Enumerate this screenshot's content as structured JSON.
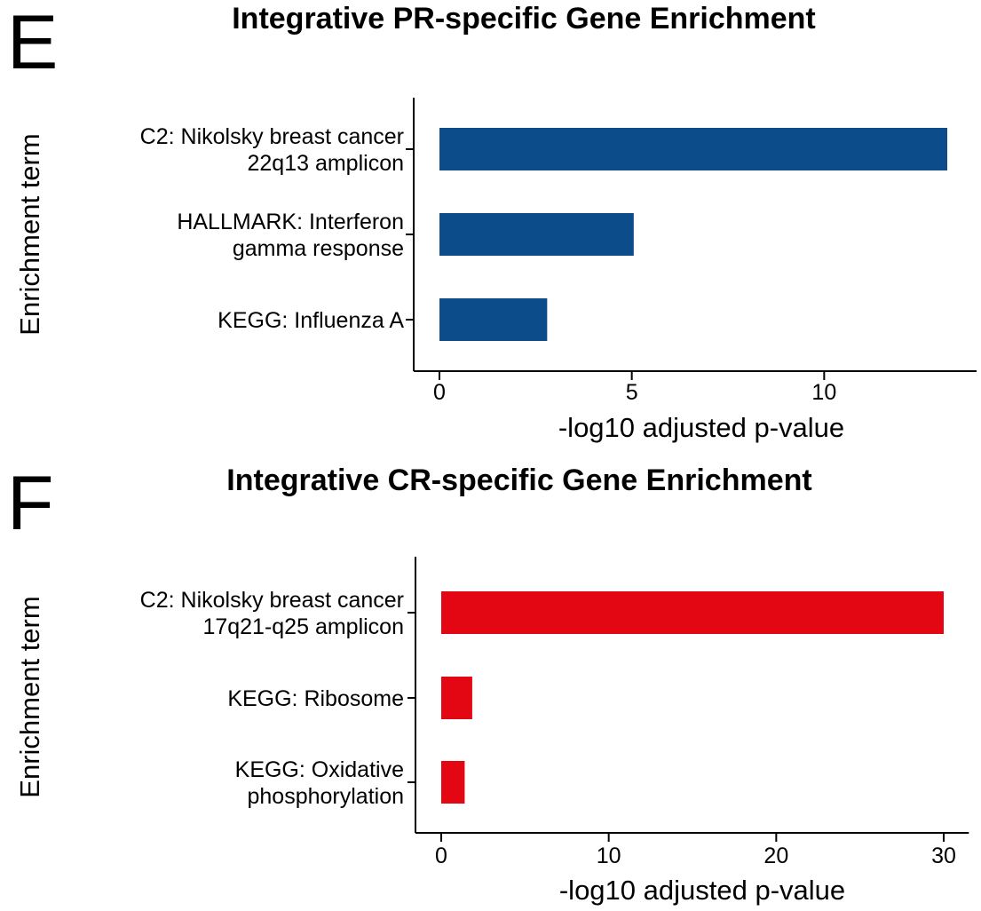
{
  "chart_data": [
    {
      "type": "bar",
      "orientation": "horizontal",
      "panel_label": "E",
      "title": "Integrative PR-specific Gene Enrichment",
      "xlabel": "-log10 adjusted p-value",
      "ylabel": "Enrichment term",
      "categories": [
        [
          "C2: Nikolsky breast cancer",
          "22q13 amplicon"
        ],
        [
          "HALLMARK: Interferon",
          "gamma response"
        ],
        [
          "KEGG: Influenza A"
        ]
      ],
      "values": [
        13.2,
        5.05,
        2.8
      ],
      "xlim": [
        -0.6,
        14
      ],
      "xticks": [
        0,
        5,
        10
      ],
      "bar_color": "#0d4c8b",
      "grid": false,
      "legend": "none"
    },
    {
      "type": "bar",
      "orientation": "horizontal",
      "panel_label": "F",
      "title": "Integrative CR-specific Gene Enrichment",
      "xlabel": "-log10 adjusted p-value",
      "ylabel": "Enrichment term",
      "categories": [
        [
          "C2: Nikolsky breast cancer",
          "17q21-q25 amplicon"
        ],
        [
          "KEGG: Ribosome"
        ],
        [
          "KEGG: Oxidative",
          "phosphorylation"
        ]
      ],
      "values": [
        30,
        1.85,
        1.4
      ],
      "xlim": [
        -1.5,
        31.5
      ],
      "xticks": [
        0,
        10,
        20,
        30
      ],
      "bar_color": "#e30613",
      "grid": false,
      "legend": "none"
    }
  ]
}
